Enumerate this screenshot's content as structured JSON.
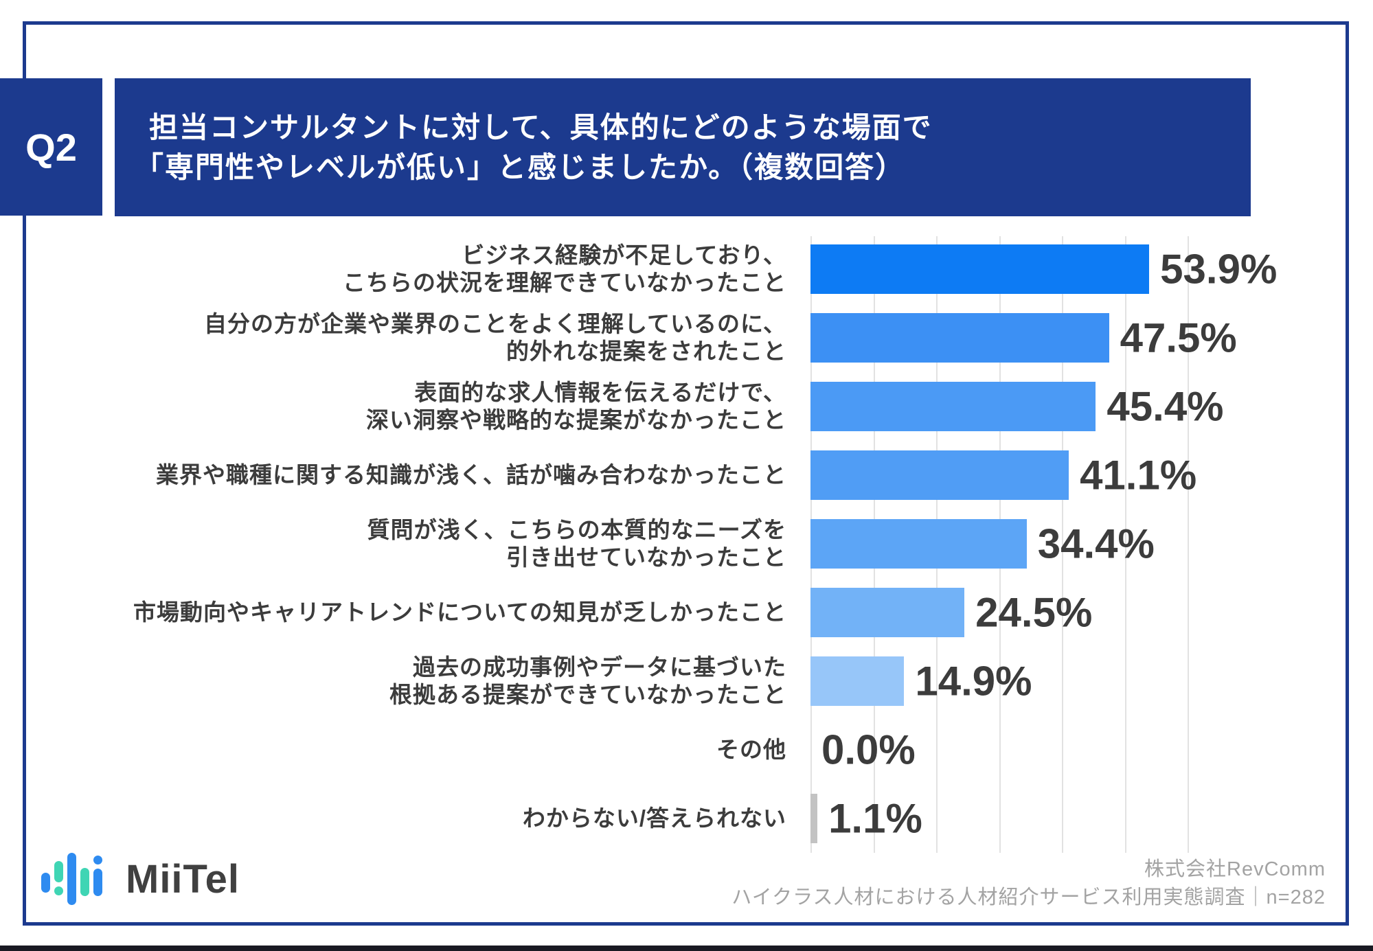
{
  "page": {
    "q_label": "Q2",
    "title_line1": "担当コンサルタントに対して、具体的にどのような場面で",
    "title_line2": "「専門性やレベルが低い」と感じましたか。（複数回答）",
    "colors": {
      "navy": "#1c3a8e",
      "text_dark": "#3c3c3c",
      "grid": "#e2e2e2",
      "footer_gray": "#a3a3a3",
      "bottom_strip": "#191922"
    }
  },
  "chart_data": {
    "type": "bar",
    "orientation": "horizontal",
    "unit": "%",
    "xlim": [
      0,
      60
    ],
    "grid_step": 10,
    "grid": true,
    "legend": "none",
    "categories": [
      "ビジネス経験が不足しており、こちらの状況を理解できていなかったこと",
      "自分の方が企業や業界のことをよく理解しているのに、的外れな提案をされたこと",
      "表面的な求人情報を伝えるだけで、深い洞察や戦略的な提案がなかったこと",
      "業界や職種に関する知識が浅く、話が噛み合わなかったこと",
      "質問が浅く、こちらの本質的なニーズを引き出せていなかったこと",
      "市場動向やキャリアトレンドについての知見が乏しかったこと",
      "過去の成功事例やデータに基づいた根拠ある提案ができていなかったこと",
      "その他",
      "わからない/答えられない"
    ],
    "values": [
      53.9,
      47.5,
      45.4,
      41.1,
      34.4,
      24.5,
      14.9,
      0.0,
      1.1
    ],
    "rows": [
      {
        "label_lines": [
          "ビジネス経験が不足しており、",
          "こちらの状況を理解できていなかったこと"
        ],
        "value": 53.9,
        "display": "53.9%",
        "color": "#0d7bf4"
      },
      {
        "label_lines": [
          "自分の方が企業や業界のことをよく理解しているのに、",
          "的外れな提案をされたこと"
        ],
        "value": 47.5,
        "display": "47.5%",
        "color": "#3c90f4"
      },
      {
        "label_lines": [
          "表面的な求人情報を伝えるだけで、",
          "深い洞察や戦略的な提案がなかったこと"
        ],
        "value": 45.4,
        "display": "45.4%",
        "color": "#4b9af5"
      },
      {
        "label_lines": [
          "業界や職種に関する知識が浅く、話が噛み合わなかったこと"
        ],
        "value": 41.1,
        "display": "41.1%",
        "color": "#509df5"
      },
      {
        "label_lines": [
          "質問が浅く、こちらの本質的なニーズを",
          "引き出せていなかったこと"
        ],
        "value": 34.4,
        "display": "34.4%",
        "color": "#5ca5f6"
      },
      {
        "label_lines": [
          "市場動向やキャリアトレンドについての知見が乏しかったこと"
        ],
        "value": 24.5,
        "display": "24.5%",
        "color": "#72b2f7"
      },
      {
        "label_lines": [
          "過去の成功事例やデータに基づいた",
          "根拠ある提案ができていなかったこと"
        ],
        "value": 14.9,
        "display": "14.9%",
        "color": "#97c6f9"
      },
      {
        "label_lines": [
          "その他"
        ],
        "value": 0.0,
        "display": "0.0%",
        "color": "#c3c3c3"
      },
      {
        "label_lines": [
          "わからない/答えられない"
        ],
        "value": 1.1,
        "display": "1.1%",
        "color": "#c3c3c3"
      }
    ]
  },
  "footer": {
    "logo_text": "MiiTel",
    "logo_icon": "miitel-equalizer-icon",
    "logo_colors": {
      "blue": "#2e8bf0",
      "teal": "#3fd5b4",
      "text": "#404040"
    },
    "source_line1": "株式会社RevComm",
    "source_line2": "ハイクラス人材における人材紹介サービス利用実態調査｜n=282"
  }
}
